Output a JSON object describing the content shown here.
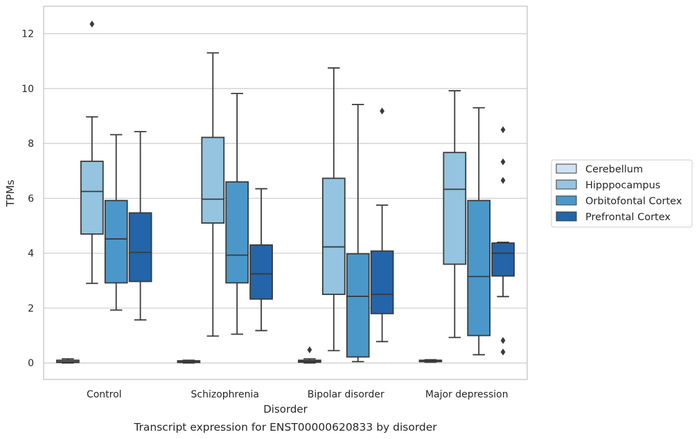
{
  "chart_data": {
    "type": "box",
    "title": "",
    "caption": "Transcript expression for ENST00000620833 by disorder",
    "xlabel": "Disorder",
    "ylabel": "TPMs",
    "ylim": [
      -0.6,
      13
    ],
    "yticks": [
      0,
      2,
      4,
      6,
      8,
      10,
      12
    ],
    "grid": "horizontal",
    "legend_position": "right",
    "categories": [
      "Control",
      "Schizophrenia",
      "Bipolar disorder",
      "Major depression"
    ],
    "series": [
      {
        "name": "Cerebellum",
        "color": "#d0e1f2",
        "boxes": [
          {
            "min": 0.0,
            "q1": 0.02,
            "median": 0.05,
            "q3": 0.1,
            "max": 0.15,
            "outliers": []
          },
          {
            "min": 0.0,
            "q1": 0.02,
            "median": 0.05,
            "q3": 0.08,
            "max": 0.1,
            "outliers": []
          },
          {
            "min": 0.0,
            "q1": 0.03,
            "median": 0.06,
            "q3": 0.1,
            "max": 0.15,
            "outliers": [
              0.48
            ]
          },
          {
            "min": 0.03,
            "q1": 0.05,
            "median": 0.08,
            "q3": 0.1,
            "max": 0.12,
            "outliers": []
          }
        ]
      },
      {
        "name": "Hipppocampus",
        "color": "#94c4df",
        "boxes": [
          {
            "min": 2.9,
            "q1": 4.7,
            "median": 6.25,
            "q3": 7.35,
            "max": 8.97,
            "outliers": [
              12.35
            ]
          },
          {
            "min": 0.98,
            "q1": 5.1,
            "median": 5.97,
            "q3": 8.22,
            "max": 11.3,
            "outliers": []
          },
          {
            "min": 0.45,
            "q1": 2.5,
            "median": 4.23,
            "q3": 6.73,
            "max": 10.75,
            "outliers": []
          },
          {
            "min": 0.93,
            "q1": 3.6,
            "median": 6.33,
            "q3": 7.67,
            "max": 9.92,
            "outliers": []
          }
        ]
      },
      {
        "name": "Orbitofontal Cortex",
        "color": "#4a98c9",
        "boxes": [
          {
            "min": 1.93,
            "q1": 2.92,
            "median": 4.52,
            "q3": 5.92,
            "max": 8.32,
            "outliers": []
          },
          {
            "min": 1.05,
            "q1": 2.92,
            "median": 3.93,
            "q3": 6.6,
            "max": 9.82,
            "outliers": []
          },
          {
            "min": 0.05,
            "q1": 0.22,
            "median": 2.43,
            "q3": 3.98,
            "max": 9.42,
            "outliers": []
          },
          {
            "min": 0.3,
            "q1": 1.0,
            "median": 3.15,
            "q3": 5.92,
            "max": 9.3,
            "outliers": []
          }
        ]
      },
      {
        "name": "Prefrontal Cortex",
        "color": "#2464a8",
        "boxes": [
          {
            "min": 1.57,
            "q1": 2.97,
            "median": 4.03,
            "q3": 5.47,
            "max": 8.43,
            "outliers": []
          },
          {
            "min": 1.18,
            "q1": 2.33,
            "median": 3.25,
            "q3": 4.3,
            "max": 6.35,
            "outliers": []
          },
          {
            "min": 0.78,
            "q1": 1.8,
            "median": 2.5,
            "q3": 4.08,
            "max": 5.75,
            "outliers": [
              9.18
            ]
          },
          {
            "min": 2.42,
            "q1": 3.17,
            "median": 4.0,
            "q3": 4.37,
            "max": 4.4,
            "outliers": [
              8.5,
              7.33,
              6.65,
              0.82,
              0.4
            ]
          }
        ]
      }
    ]
  }
}
